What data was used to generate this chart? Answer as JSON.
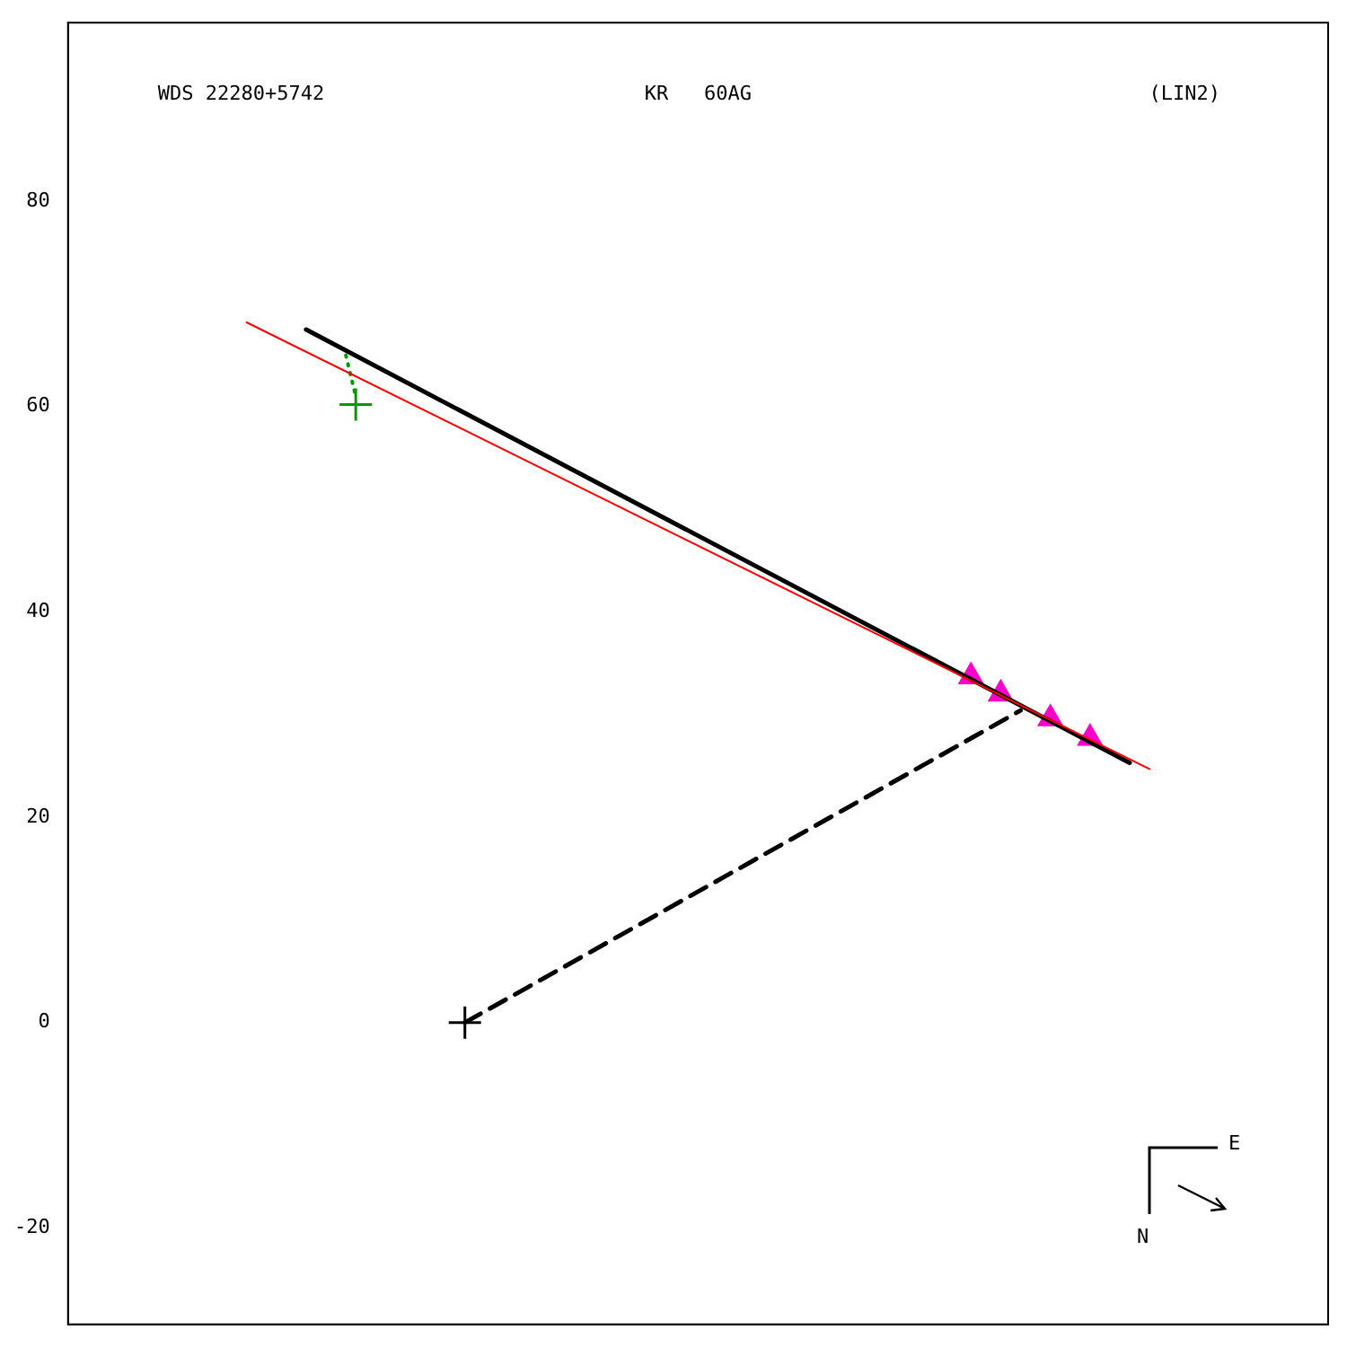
{
  "chart_data": {
    "type": "line",
    "title": "WDS 22280+5742",
    "subtitle": "KR   60AG",
    "annotations": [
      "(LIN2)",
      "E",
      "N"
    ],
    "categories": [
      null,
      null,
      null,
      null,
      null,
      null,
      null,
      null,
      null,
      null,
      null,
      null,
      null,
      null,
      null,
      null,
      null,
      null,
      null,
      null,
      null,
      null,
      null,
      null,
      null,
      null,
      null,
      null,
      null,
      null,
      null,
      null,
      null,
      null,
      null,
      null,
      null,
      null,
      null,
      null,
      null,
      null,
      null,
      null,
      null,
      null,
      null,
      null,
      null,
      null,
      null,
      null,
      null,
      null,
      null,
      null,
      null,
      null,
      null,
      null,
      null,
      null,
      null,
      null,
      null,
      null,
      null,
      null,
      null,
      null,
      null,
      null,
      null,
      null,
      null,
      null,
      null,
      null,
      null,
      null,
      null,
      null,
      null,
      null,
      null,
      null,
      null,
      null,
      null,
      null,
      null,
      null,
      null,
      null,
      null,
      null,
      null,
      null,
      null,
      null,
      null,
      null,
      null,
      null,
      null,
      null,
      null,
      null,
      null,
      null,
      null,
      null,
      null,
      null,
      null,
      null,
      null,
      null,
      null,
      null,
      null,
      null,
      null,
      null,
      null,
      null,
      null,
      null
    ],
    "ylim": [
      -29.4,
      97.4
    ],
    "yticks": [
      -20,
      0,
      20,
      40,
      60,
      80
    ],
    "tick_labels": "y",
    "grid": false,
    "legend": false,
    "series": [
      {
        "color": "#ff0000",
        "line_style": "solid",
        "values": [
          null,
          null,
          null,
          null,
          null,
          null,
          null,
          null,
          null,
          null,
          null,
          null,
          null,
          null,
          null,
          null,
          null,
          null,
          68.2,
          null,
          null,
          null,
          null,
          null,
          null,
          null,
          null,
          null,
          null,
          null,
          null,
          null,
          null,
          null,
          null,
          null,
          null,
          null,
          null,
          null,
          null,
          null,
          null,
          null,
          null,
          null,
          null,
          null,
          null,
          null,
          null,
          null,
          null,
          null,
          null,
          null,
          null,
          null,
          null,
          null,
          null,
          null,
          null,
          null,
          null,
          null,
          null,
          null,
          null,
          null,
          null,
          null,
          null,
          null,
          null,
          null,
          null,
          null,
          null,
          null,
          null,
          null,
          null,
          null,
          null,
          null,
          null,
          null,
          null,
          null,
          null,
          null,
          null,
          null,
          null,
          null,
          null,
          null,
          null,
          null,
          null,
          null,
          null,
          null,
          null,
          null,
          null,
          null,
          null,
          24.7,
          null,
          null,
          null,
          null,
          null,
          null,
          null,
          null,
          null,
          null,
          null,
          null,
          null,
          null,
          null,
          null,
          null,
          null
        ]
      },
      {
        "color": "#000000",
        "line_style": "solid",
        "values": [
          null,
          null,
          null,
          null,
          null,
          null,
          null,
          null,
          null,
          null,
          null,
          null,
          null,
          null,
          null,
          null,
          null,
          null,
          null,
          null,
          null,
          null,
          null,
          null,
          67.5,
          null,
          null,
          null,
          null,
          null,
          null,
          null,
          null,
          null,
          null,
          null,
          null,
          null,
          null,
          null,
          null,
          null,
          null,
          null,
          null,
          null,
          null,
          null,
          null,
          null,
          null,
          null,
          null,
          null,
          null,
          null,
          null,
          null,
          null,
          null,
          null,
          null,
          null,
          null,
          null,
          null,
          null,
          null,
          null,
          null,
          null,
          null,
          null,
          null,
          null,
          null,
          null,
          null,
          null,
          null,
          null,
          null,
          null,
          null,
          null,
          null,
          null,
          null,
          null,
          null,
          null,
          null,
          null,
          null,
          null,
          null,
          null,
          null,
          null,
          null,
          null,
          null,
          null,
          null,
          null,
          null,
          null,
          25.3,
          null,
          null,
          null,
          null,
          null,
          null,
          null,
          null,
          null,
          null,
          null,
          null,
          null,
          null,
          null,
          null,
          null,
          null,
          null,
          null
        ]
      },
      {
        "color": "#000000",
        "line_style": "dashed",
        "values": [
          null,
          null,
          null,
          null,
          null,
          null,
          null,
          null,
          null,
          null,
          null,
          null,
          null,
          null,
          null,
          null,
          null,
          null,
          null,
          null,
          null,
          null,
          null,
          null,
          null,
          null,
          null,
          null,
          null,
          null,
          null,
          null,
          null,
          null,
          null,
          null,
          null,
          null,
          null,
          null,
          0,
          null,
          null,
          null,
          null,
          null,
          null,
          null,
          null,
          null,
          null,
          null,
          null,
          null,
          null,
          null,
          null,
          null,
          null,
          null,
          null,
          null,
          null,
          null,
          null,
          null,
          null,
          null,
          null,
          null,
          null,
          null,
          null,
          null,
          null,
          null,
          null,
          null,
          null,
          null,
          null,
          null,
          null,
          null,
          null,
          null,
          null,
          null,
          null,
          null,
          null,
          null,
          null,
          null,
          null,
          null,
          30.4,
          null,
          null,
          null,
          null,
          null,
          null,
          null,
          null,
          null,
          null,
          null,
          null,
          null,
          null,
          null,
          null,
          null,
          null,
          null,
          null,
          null,
          null,
          null,
          null,
          null,
          null,
          null,
          null,
          null,
          null,
          null
        ]
      },
      {
        "color": "#009900",
        "line_style": "dotted",
        "values": [
          null,
          null,
          null,
          null,
          null,
          null,
          null,
          null,
          null,
          null,
          null,
          null,
          null,
          null,
          null,
          null,
          null,
          null,
          null,
          null,
          null,
          null,
          null,
          null,
          null,
          null,
          null,
          null,
          65.0,
          61.0,
          null,
          null,
          null,
          null,
          null,
          null,
          null,
          null,
          null,
          null,
          null,
          null,
          null,
          null,
          null,
          null,
          null,
          null,
          null,
          null,
          null,
          null,
          null,
          null,
          null,
          null,
          null,
          null,
          null,
          null,
          null,
          null,
          null,
          null,
          null,
          null,
          null,
          null,
          null,
          null,
          null,
          null,
          null,
          null,
          null,
          null,
          null,
          null,
          null,
          null,
          null,
          null,
          null,
          null,
          null,
          null,
          null,
          null,
          null,
          null,
          null,
          null,
          null,
          null,
          null,
          null,
          null,
          null,
          null,
          null,
          null,
          null,
          null,
          null,
          null,
          null,
          null,
          null,
          null,
          null,
          null,
          null,
          null,
          null,
          null,
          null,
          null,
          null,
          null,
          null,
          null,
          null,
          null,
          null,
          null,
          null,
          null,
          null
        ]
      },
      {
        "type": "scatter",
        "color": "#ff00cc",
        "marker": "triangle",
        "values": [
          null,
          null,
          null,
          null,
          null,
          null,
          null,
          null,
          null,
          null,
          null,
          null,
          null,
          null,
          null,
          null,
          null,
          null,
          null,
          null,
          null,
          null,
          null,
          null,
          null,
          null,
          null,
          null,
          null,
          null,
          null,
          null,
          null,
          null,
          null,
          null,
          null,
          null,
          null,
          null,
          null,
          null,
          null,
          null,
          null,
          null,
          null,
          null,
          null,
          null,
          null,
          null,
          null,
          null,
          null,
          null,
          null,
          null,
          null,
          null,
          null,
          null,
          null,
          null,
          null,
          null,
          null,
          null,
          null,
          null,
          null,
          null,
          null,
          null,
          null,
          null,
          null,
          null,
          null,
          null,
          null,
          null,
          null,
          null,
          null,
          null,
          null,
          null,
          null,
          null,
          null,
          33.7,
          null,
          null,
          32.0,
          null,
          null,
          null,
          null,
          29.6,
          null,
          null,
          null,
          27.7,
          null,
          null,
          null,
          null,
          null,
          null,
          null,
          null,
          null,
          null,
          null,
          null,
          null,
          null,
          null,
          null,
          null,
          null,
          null,
          null,
          null,
          null,
          null,
          null
        ]
      },
      {
        "type": "scatter",
        "color": "#009900",
        "marker": "cross",
        "values": [
          null,
          null,
          null,
          null,
          null,
          null,
          null,
          null,
          null,
          null,
          null,
          null,
          null,
          null,
          null,
          null,
          null,
          null,
          null,
          null,
          null,
          null,
          null,
          null,
          null,
          null,
          null,
          null,
          null,
          60.2,
          null,
          null,
          null,
          null,
          null,
          null,
          null,
          null,
          null,
          null,
          null,
          null,
          null,
          null,
          null,
          null,
          null,
          null,
          null,
          null,
          null,
          null,
          null,
          null,
          null,
          null,
          null,
          null,
          null,
          null,
          null,
          null,
          null,
          null,
          null,
          null,
          null,
          null,
          null,
          null,
          null,
          null,
          null,
          null,
          null,
          null,
          null,
          null,
          null,
          null,
          null,
          null,
          null,
          null,
          null,
          null,
          null,
          null,
          null,
          null,
          null,
          null,
          null,
          null,
          null,
          null,
          null,
          null,
          null,
          null,
          null,
          null,
          null,
          null,
          null,
          null,
          null,
          null,
          null,
          null,
          null,
          null,
          null,
          null,
          null,
          null,
          null,
          null,
          null,
          null,
          null,
          null,
          null,
          null,
          null,
          null,
          null,
          null
        ]
      },
      {
        "type": "scatter",
        "color": "#000000",
        "marker": "cross",
        "values": [
          null,
          null,
          null,
          null,
          null,
          null,
          null,
          null,
          null,
          null,
          null,
          null,
          null,
          null,
          null,
          null,
          null,
          null,
          null,
          null,
          null,
          null,
          null,
          null,
          null,
          null,
          null,
          null,
          null,
          null,
          null,
          null,
          null,
          null,
          null,
          null,
          null,
          null,
          null,
          null,
          0,
          null,
          null,
          null,
          null,
          null,
          null,
          null,
          null,
          null,
          null,
          null,
          null,
          null,
          null,
          null,
          null,
          null,
          null,
          null,
          null,
          null,
          null,
          null,
          null,
          null,
          null,
          null,
          null,
          null,
          null,
          null,
          null,
          null,
          null,
          null,
          null,
          null,
          null,
          null,
          null,
          null,
          null,
          null,
          null,
          null,
          null,
          null,
          null,
          null,
          null,
          null,
          null,
          null,
          null,
          null,
          null,
          null,
          null,
          null,
          null,
          null,
          null,
          null,
          null,
          null,
          null,
          null,
          null,
          null,
          null,
          null,
          null,
          null,
          null,
          null,
          null,
          null,
          null,
          null,
          null,
          null,
          null,
          null,
          null,
          null,
          null,
          null
        ]
      }
    ]
  }
}
